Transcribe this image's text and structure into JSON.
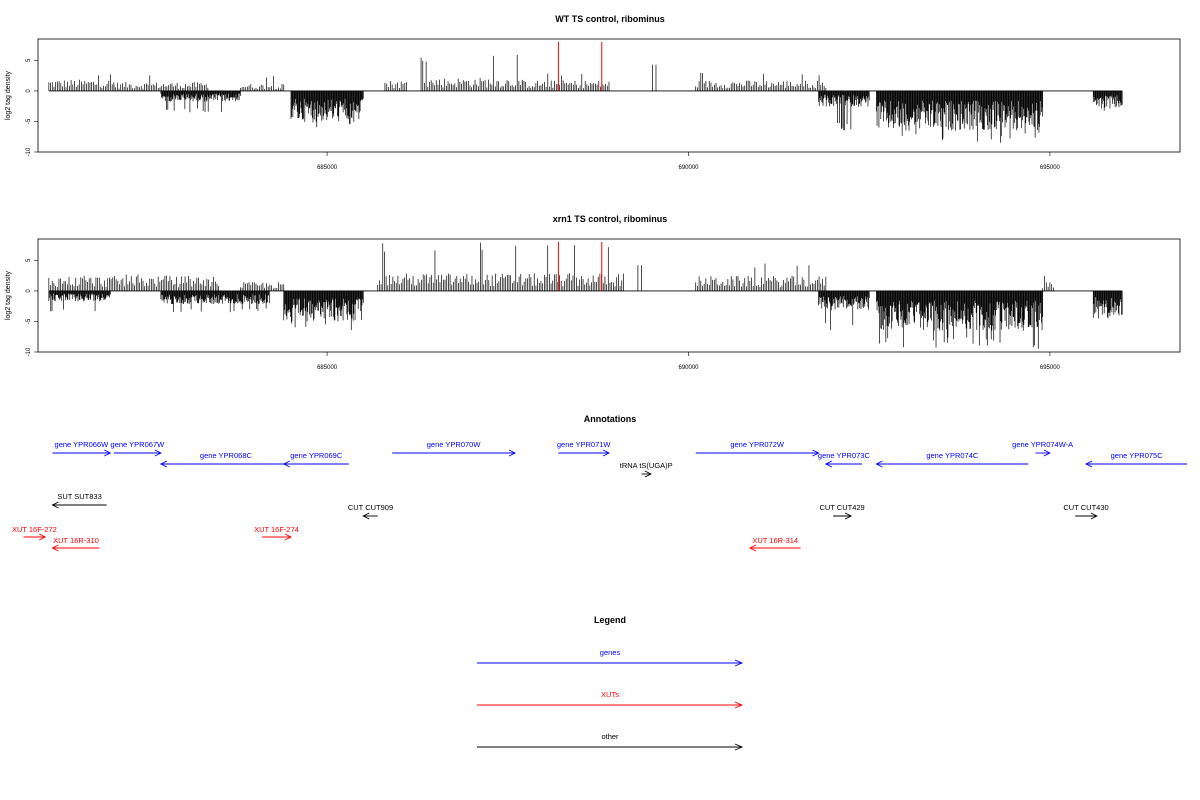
{
  "chart_data": [
    {
      "type": "bar",
      "title": "WT TS control, ribominus",
      "ylabel": "log2 tag density",
      "xlim": [
        681000,
        696800
      ],
      "ylim": [
        -10,
        8.5
      ],
      "yticks": [
        -10,
        -5,
        0,
        5
      ],
      "xticks": [
        685000,
        690000,
        695000
      ],
      "series_note": "signed strand-specific tag density bars",
      "segments": [
        {
          "start": 681150,
          "end": 682050,
          "sign": 1,
          "mean": 1.3,
          "max": 3.0
        },
        {
          "start": 682050,
          "end": 683350,
          "sign": 1,
          "mean": 1.0,
          "max": 3.0
        },
        {
          "start": 682700,
          "end": 683800,
          "sign": -1,
          "mean": -1.2,
          "max": -3.5
        },
        {
          "start": 683800,
          "end": 684400,
          "sign": 1,
          "mean": 0.8,
          "max": 2.5
        },
        {
          "start": 684500,
          "end": 685500,
          "sign": -1,
          "mean": -3.5,
          "max": -6.0
        },
        {
          "start": 685800,
          "end": 686100,
          "sign": 1,
          "mean": 1.2,
          "max": 2.5
        },
        {
          "start": 686300,
          "end": 687700,
          "sign": 1,
          "mean": 1.5,
          "max": 6.0
        },
        {
          "start": 687700,
          "end": 688900,
          "sign": 1,
          "mean": 1.2,
          "max": 3.0
        },
        {
          "start": 689500,
          "end": 689550,
          "sign": 1,
          "mean": 4.3,
          "max": 4.3
        },
        {
          "start": 690100,
          "end": 691900,
          "sign": 1,
          "mean": 1.2,
          "max": 3.0
        },
        {
          "start": 691800,
          "end": 692500,
          "sign": -1,
          "mean": -1.8,
          "max": -6.5
        },
        {
          "start": 692600,
          "end": 694900,
          "sign": -1,
          "mean": -4.5,
          "max": -8.5
        },
        {
          "start": 695600,
          "end": 696000,
          "sign": -1,
          "mean": -2.0,
          "max": -3.5
        }
      ],
      "red_lines": [
        688200,
        688800
      ]
    },
    {
      "type": "bar",
      "title": "xrn1 TS control, ribominus",
      "ylabel": "log2 tag density",
      "xlim": [
        681000,
        696800
      ],
      "ylim": [
        -10,
        8.5
      ],
      "yticks": [
        -10,
        -5,
        0,
        5
      ],
      "xticks": [
        685000,
        690000,
        695000
      ],
      "series_note": "signed strand-specific tag density bars",
      "segments": [
        {
          "start": 681150,
          "end": 683500,
          "sign": 1,
          "mean": 1.7,
          "max": 3.0
        },
        {
          "start": 681150,
          "end": 682000,
          "sign": -1,
          "mean": -1.2,
          "max": -3.5
        },
        {
          "start": 682700,
          "end": 684200,
          "sign": -1,
          "mean": -1.5,
          "max": -3.5
        },
        {
          "start": 683800,
          "end": 684400,
          "sign": 1,
          "mean": 1.0,
          "max": 3.0
        },
        {
          "start": 684400,
          "end": 685500,
          "sign": -1,
          "mean": -3.5,
          "max": -6.5
        },
        {
          "start": 685700,
          "end": 689100,
          "sign": 1,
          "mean": 2.0,
          "max": 8.0
        },
        {
          "start": 689300,
          "end": 689350,
          "sign": 1,
          "mean": 4.2,
          "max": 4.2
        },
        {
          "start": 690100,
          "end": 691900,
          "sign": 1,
          "mean": 1.7,
          "max": 4.5
        },
        {
          "start": 691800,
          "end": 692500,
          "sign": -1,
          "mean": -2.2,
          "max": -6.5
        },
        {
          "start": 692600,
          "end": 694900,
          "sign": -1,
          "mean": -4.5,
          "max": -9.5
        },
        {
          "start": 694900,
          "end": 695050,
          "sign": 1,
          "mean": 1.0,
          "max": 2.5
        },
        {
          "start": 695600,
          "end": 696000,
          "sign": -1,
          "mean": -2.8,
          "max": -5.0
        }
      ],
      "red_lines": [
        688200,
        688800
      ]
    }
  ],
  "annotations": {
    "title": "Annotations",
    "features": [
      {
        "label": "gene YPR066W",
        "color": "#0000ff",
        "start": 681200,
        "end": 682000,
        "dir": "right",
        "row": 0
      },
      {
        "label": "gene YPR067W",
        "color": "#0000ff",
        "start": 682050,
        "end": 682700,
        "dir": "right",
        "row": 0
      },
      {
        "label": "gene YPR068C",
        "color": "#0000ff",
        "start": 682700,
        "end": 684500,
        "dir": "left",
        "row": 1
      },
      {
        "label": "gene YPR069C",
        "color": "#0000ff",
        "start": 684400,
        "end": 685300,
        "dir": "left",
        "row": 1
      },
      {
        "label": "gene YPR070W",
        "color": "#0000ff",
        "start": 685900,
        "end": 687600,
        "dir": "right",
        "row": 0
      },
      {
        "label": "gene YPR071W",
        "color": "#0000ff",
        "start": 688200,
        "end": 688900,
        "dir": "right",
        "row": 0
      },
      {
        "label": "gene YPR072W",
        "color": "#0000ff",
        "start": 690100,
        "end": 691800,
        "dir": "right",
        "row": 0
      },
      {
        "label": "gene YPR073C",
        "color": "#0000ff",
        "start": 691900,
        "end": 692400,
        "dir": "left",
        "row": 1
      },
      {
        "label": "gene YPR074C",
        "color": "#0000ff",
        "start": 692600,
        "end": 694700,
        "dir": "left",
        "row": 1
      },
      {
        "label": "gene YPR074W-A",
        "color": "#0000ff",
        "start": 694800,
        "end": 695000,
        "dir": "right",
        "row": 0
      },
      {
        "label": "gene YPR075C",
        "color": "#0000ff",
        "start": 695500,
        "end": 696900,
        "dir": "left",
        "row": 1
      },
      {
        "label": "tRNA tS(UGA)P",
        "color": "#000000",
        "start": 689350,
        "end": 689480,
        "dir": "right",
        "row": 2
      },
      {
        "label": "SUT SUT833",
        "color": "#000000",
        "start": 681200,
        "end": 681950,
        "dir": "left",
        "row": 3
      },
      {
        "label": "CUT CUT909",
        "color": "#000000",
        "start": 685500,
        "end": 685700,
        "dir": "left",
        "row": 4
      },
      {
        "label": "CUT CUT429",
        "color": "#000000",
        "start": 692000,
        "end": 692250,
        "dir": "right",
        "row": 4
      },
      {
        "label": "CUT CUT430",
        "color": "#000000",
        "start": 695350,
        "end": 695650,
        "dir": "right",
        "row": 4
      },
      {
        "label": "XUT 16F-272",
        "color": "#ff0000",
        "start": 680800,
        "end": 681100,
        "dir": "right",
        "row": 5
      },
      {
        "label": "XUT 16R-310",
        "color": "#ff0000",
        "start": 681200,
        "end": 681850,
        "dir": "left",
        "row": 6
      },
      {
        "label": "XUT 16F-274",
        "color": "#ff0000",
        "start": 684100,
        "end": 684500,
        "dir": "right",
        "row": 5
      },
      {
        "label": "XUT 16R-314",
        "color": "#ff0000",
        "start": 690850,
        "end": 691550,
        "dir": "left",
        "row": 6
      }
    ]
  },
  "legend": {
    "title": "Legend",
    "items": [
      {
        "label": "genes",
        "color": "#0000ff"
      },
      {
        "label": "XUTs",
        "color": "#ff0000"
      },
      {
        "label": "other",
        "color": "#000000"
      }
    ]
  }
}
